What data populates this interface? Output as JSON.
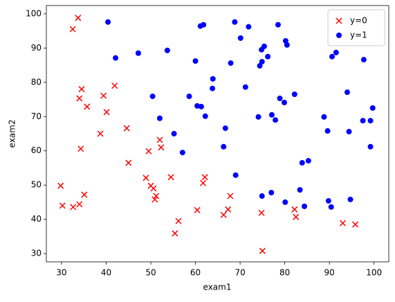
{
  "chart_data": {
    "type": "scatter",
    "xlabel": "exam1",
    "ylabel": "exam2",
    "xlim": [
      26.6,
      103.3
    ],
    "ylim": [
      27.6,
      102.4
    ],
    "xticks": [
      30,
      40,
      50,
      60,
      70,
      80,
      90,
      100
    ],
    "yticks": [
      30,
      40,
      50,
      60,
      70,
      80,
      90,
      100
    ],
    "legend": "upper right",
    "series": [
      {
        "name": "y=0",
        "color": "#ff0000",
        "marker": "x",
        "x": [
          33.7,
          32.5,
          34.5,
          34.0,
          35.7,
          39.4,
          41.9,
          40.1,
          38.7,
          44.6,
          34.3,
          45.0,
          49.5,
          52.0,
          52.3,
          48.9,
          50.0,
          50.6,
          51.2,
          50.9,
          54.5,
          62.1,
          61.7,
          67.8,
          67.3,
          66.3,
          60.4,
          56.2,
          55.4,
          29.8,
          30.2,
          32.6,
          34.0,
          35.1,
          74.8,
          75.0,
          82.2,
          82.5,
          93.0,
          95.8
        ],
        "y": [
          98.8,
          95.5,
          78.0,
          75.3,
          72.9,
          76.1,
          79.0,
          71.3,
          65.0,
          66.6,
          60.6,
          56.5,
          59.9,
          63.2,
          61.0,
          52.1,
          49.8,
          49.0,
          46.8,
          45.8,
          52.3,
          52.3,
          50.6,
          46.8,
          42.9,
          41.3,
          42.7,
          39.5,
          35.9,
          49.8,
          44.0,
          43.6,
          44.4,
          47.2,
          41.9,
          30.8,
          42.9,
          40.7,
          38.9,
          38.5
        ]
      },
      {
        "name": "y=1",
        "color": "#0000ff",
        "marker": "o",
        "x": [
          40.4,
          42.1,
          47.2,
          53.7,
          50.4,
          52.0,
          55.2,
          57.1,
          58.6,
          60.0,
          60.4,
          61.3,
          62.2,
          61.1,
          61.8,
          63.9,
          63.8,
          66.7,
          66.3,
          67.9,
          68.8,
          70.1,
          71.9,
          71.2,
          69.0,
          74.1,
          74.4,
          74.9,
          74.8,
          75.4,
          76.2,
          78.5,
          77.1,
          77.9,
          78.9,
          79.9,
          80.2,
          80.5,
          82.2,
          74.9,
          77.0,
          80.1,
          83.4,
          83.9,
          85.3,
          84.4,
          88.8,
          89.6,
          89.8,
          90.4,
          90.6,
          91.5,
          94.0,
          94.4,
          94.7,
          97.7,
          97.5,
          99.2,
          99.2,
          99.7
        ],
        "y": [
          97.6,
          87.1,
          88.5,
          89.3,
          75.9,
          69.5,
          65.0,
          59.5,
          75.9,
          86.2,
          73.1,
          72.9,
          70.1,
          96.4,
          96.8,
          81.0,
          78.2,
          66.6,
          61.2,
          85.6,
          97.6,
          92.9,
          96.2,
          78.6,
          52.9,
          69.9,
          84.8,
          86.0,
          89.5,
          90.5,
          87.5,
          96.8,
          70.5,
          69.0,
          75.3,
          74.1,
          92.1,
          90.9,
          76.5,
          46.8,
          47.8,
          45.0,
          48.6,
          56.5,
          57.1,
          43.8,
          69.9,
          65.8,
          45.4,
          43.6,
          87.5,
          88.7,
          77.1,
          65.6,
          45.8,
          86.6,
          68.8,
          68.8,
          61.2,
          72.5
        ]
      }
    ]
  }
}
